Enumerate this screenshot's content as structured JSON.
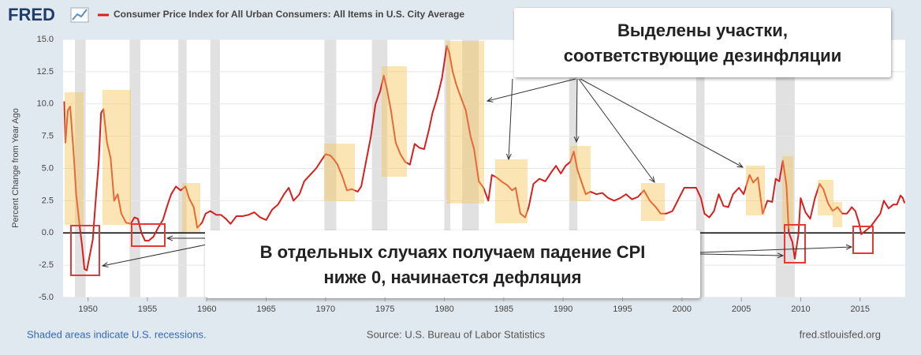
{
  "logo": "FRED",
  "chart_data": {
    "type": "line",
    "ylabel": "Percent Change from Year Ago",
    "xlim": [
      1947.9,
      2018.8
    ],
    "xticks": [
      1950,
      1955,
      1960,
      1965,
      1970,
      1975,
      1980,
      1985,
      1990,
      1995,
      2000,
      2005,
      2010,
      2015
    ],
    "ylim": [
      -5,
      15
    ],
    "yticks": [
      {
        "value": -5,
        "label": "-5.0"
      },
      {
        "value": -2.5,
        "label": "-2.5"
      },
      {
        "value": 0,
        "label": "0.0"
      },
      {
        "value": 2.5,
        "label": "2.5"
      },
      {
        "value": 5,
        "label": "5.0"
      },
      {
        "value": 7.5,
        "label": "7.5"
      },
      {
        "value": 10,
        "label": "10.0"
      },
      {
        "value": 12.5,
        "label": "12.5"
      },
      {
        "value": 15,
        "label": "15.0"
      }
    ],
    "grid": true,
    "recessions": [
      [
        1948.9,
        1949.8
      ],
      [
        1953.5,
        1954.4
      ],
      [
        1957.6,
        1958.3
      ],
      [
        1960.3,
        1961.1
      ],
      [
        1969.9,
        1970.9
      ],
      [
        1973.9,
        1975.2
      ],
      [
        1980.0,
        1980.5
      ],
      [
        1981.5,
        1982.9
      ],
      [
        1990.5,
        1991.2
      ],
      [
        2001.2,
        2001.9
      ],
      [
        2007.9,
        2009.5
      ]
    ],
    "x": [
      1948.0,
      1948.1,
      1948.3,
      1948.5,
      1948.8,
      1949.0,
      1949.3,
      1949.5,
      1949.7,
      1949.9,
      1950.2,
      1950.4,
      1950.6,
      1950.9,
      1951.1,
      1951.3,
      1951.6,
      1951.9,
      1952.2,
      1952.5,
      1952.8,
      1953.2,
      1953.6,
      1953.9,
      1954.2,
      1954.5,
      1954.8,
      1955.1,
      1955.5,
      1955.9,
      1956.3,
      1956.7,
      1957.0,
      1957.4,
      1957.8,
      1958.2,
      1958.5,
      1958.9,
      1959.2,
      1959.6,
      1959.9,
      1960.3,
      1960.8,
      1961.2,
      1961.6,
      1962.0,
      1962.5,
      1963.0,
      1963.5,
      1964.0,
      1964.5,
      1965.0,
      1965.5,
      1966.0,
      1966.5,
      1966.9,
      1967.3,
      1967.8,
      1968.2,
      1968.7,
      1969.2,
      1969.7,
      1970.0,
      1970.4,
      1970.7,
      1971.0,
      1971.4,
      1971.8,
      1972.2,
      1972.7,
      1973.0,
      1973.4,
      1973.8,
      1974.2,
      1974.6,
      1974.9,
      1975.2,
      1975.5,
      1975.9,
      1976.3,
      1976.7,
      1977.1,
      1977.5,
      1977.9,
      1978.3,
      1978.7,
      1979.0,
      1979.4,
      1979.8,
      1980.2,
      1980.4,
      1980.7,
      1981.0,
      1981.4,
      1981.8,
      1982.2,
      1982.5,
      1982.9,
      1983.3,
      1983.7,
      1984.0,
      1984.4,
      1984.8,
      1985.3,
      1985.7,
      1986.0,
      1986.4,
      1986.8,
      1987.1,
      1987.5,
      1988.0,
      1988.5,
      1989.0,
      1989.4,
      1989.8,
      1990.2,
      1990.6,
      1990.9,
      1991.2,
      1991.6,
      1991.9,
      1992.3,
      1992.8,
      1993.3,
      1993.8,
      1994.3,
      1994.8,
      1995.3,
      1995.8,
      1996.3,
      1996.8,
      1997.3,
      1997.8,
      1998.2,
      1998.7,
      1999.2,
      1999.7,
      2000.2,
      2000.7,
      2001.2,
      2001.6,
      2001.9,
      2002.3,
      2002.7,
      2003.1,
      2003.5,
      2003.9,
      2004.3,
      2004.8,
      2005.2,
      2005.7,
      2006.0,
      2006.4,
      2006.8,
      2007.2,
      2007.6,
      2007.9,
      2008.2,
      2008.5,
      2008.8,
      2009.0,
      2009.3,
      2009.5,
      2009.8,
      2010.0,
      2010.4,
      2010.8,
      2011.2,
      2011.6,
      2011.9,
      2012.3,
      2012.7,
      2013.1,
      2013.5,
      2013.9,
      2014.3,
      2014.6,
      2014.9,
      2015.1,
      2015.5,
      2015.9,
      2016.3,
      2016.7,
      2017.0,
      2017.4,
      2017.8,
      2018.1,
      2018.4,
      2018.6,
      2018.75
    ],
    "series": [
      {
        "name": "Consumer Price Index for All Urban Consumers: All Items in U.S. City Average",
        "color": "#d6201f",
        "values": [
          10.2,
          7.0,
          9.5,
          9.8,
          6.0,
          3.0,
          0.5,
          -1.0,
          -2.8,
          -2.9,
          -1.5,
          -0.5,
          2.0,
          5.5,
          9.3,
          9.6,
          7.0,
          5.8,
          2.5,
          3.0,
          1.5,
          0.8,
          0.7,
          1.2,
          1.1,
          0.0,
          -0.6,
          -0.6,
          -0.3,
          0.4,
          1.0,
          2.2,
          3.0,
          3.6,
          3.3,
          3.6,
          2.7,
          2.0,
          0.4,
          0.8,
          1.5,
          1.7,
          1.4,
          1.4,
          1.1,
          0.7,
          1.3,
          1.3,
          1.4,
          1.6,
          1.2,
          1.0,
          1.8,
          2.2,
          3.0,
          3.5,
          2.5,
          3.0,
          4.0,
          4.5,
          5.0,
          5.7,
          6.1,
          6.0,
          5.7,
          5.3,
          4.4,
          3.3,
          3.4,
          3.2,
          3.6,
          5.5,
          7.4,
          10.0,
          11.0,
          12.2,
          11.0,
          9.5,
          7.0,
          6.1,
          5.5,
          5.3,
          6.9,
          6.6,
          6.5,
          8.0,
          9.3,
          10.5,
          12.0,
          14.5,
          14.0,
          12.5,
          11.5,
          10.5,
          9.5,
          7.5,
          6.5,
          4.0,
          3.5,
          2.5,
          4.5,
          4.3,
          4.0,
          3.7,
          3.3,
          3.5,
          1.5,
          1.2,
          2.0,
          3.8,
          4.2,
          4.0,
          4.7,
          5.2,
          4.6,
          5.2,
          5.5,
          6.3,
          4.9,
          3.8,
          3.0,
          3.2,
          3.0,
          3.1,
          2.7,
          2.5,
          2.7,
          3.0,
          2.6,
          2.8,
          3.3,
          2.5,
          2.0,
          1.5,
          1.5,
          1.7,
          2.6,
          3.5,
          3.5,
          3.5,
          2.7,
          1.5,
          1.2,
          1.7,
          3.0,
          2.1,
          2.0,
          3.0,
          3.5,
          3.0,
          4.5,
          3.9,
          4.3,
          1.5,
          2.5,
          2.4,
          4.2,
          4.0,
          5.6,
          3.7,
          0.0,
          -0.7,
          -2.0,
          -0.2,
          2.7,
          1.6,
          1.1,
          2.7,
          3.8,
          3.4,
          2.3,
          1.7,
          2.0,
          1.5,
          1.5,
          2.0,
          1.7,
          0.8,
          -0.1,
          0.2,
          0.5,
          1.0,
          1.5,
          2.5,
          1.9,
          2.2,
          2.2,
          2.9,
          2.7,
          2.3
        ]
      }
    ]
  },
  "note": "Shaded areas indicate U.S. recessions.",
  "source": "Source: U.S. Bureau of Labor Statistics",
  "site": "fred.stlouisfed.org",
  "annotations": {
    "disinflation": [
      "Выделены участки,",
      "соответствующие дезинфляции"
    ],
    "deflation": [
      "В отдельных случаях получаем падение CPI",
      "ниже 0, начинается дефляция"
    ]
  }
}
